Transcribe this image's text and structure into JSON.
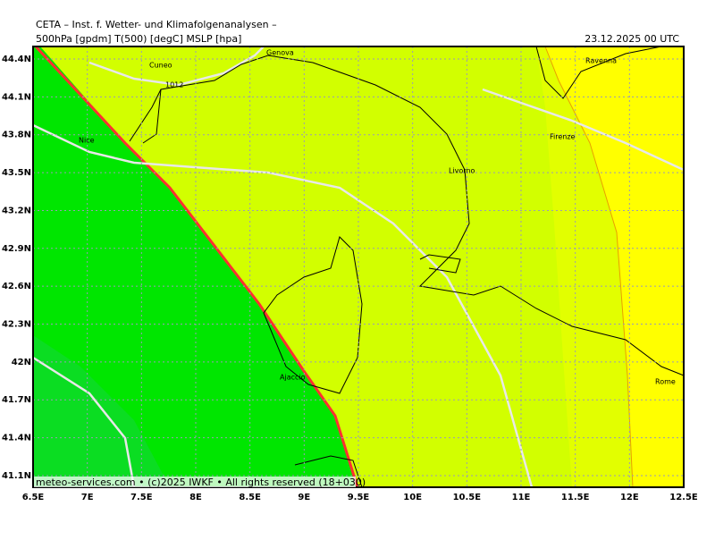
{
  "header": {
    "institute": "CETA – Inst. f. Wetter- und Klimafolgenanalysen –",
    "fields": "500hPa [gpdm] T(500) [degC] MSLP [hpa]",
    "valid": "23.12.2025 00 UTC"
  },
  "map": {
    "x_labels": [
      "6.5E",
      "7E",
      "7.5E",
      "8E",
      "8.5E",
      "9E",
      "9.5E",
      "10E",
      "10.5E",
      "11E",
      "11.5E",
      "12E",
      "12.5E"
    ],
    "y_labels": [
      "44.4N",
      "44.1N",
      "43.8N",
      "43.5N",
      "43.2N",
      "42.9N",
      "42.6N",
      "42.3N",
      "42N",
      "41.7N",
      "41.4N",
      "41.1N"
    ],
    "places": [
      "Cuneo",
      "Genova",
      "Ravenna",
      "Nice",
      "Firenze",
      "Livorno",
      "Ajaccio",
      "Rome"
    ],
    "isobar_label": "1012",
    "footer": "meteo-services.com • (c)2025 IWKF • All rights reserved (18+030)"
  }
}
